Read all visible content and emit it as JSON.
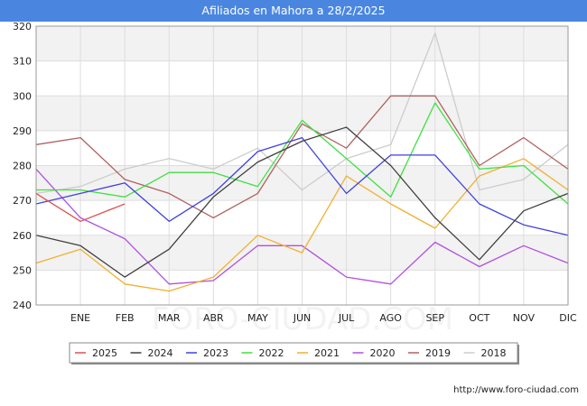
{
  "title": "Afiliados en Mahora a 28/2/2025",
  "credit": "http://www.foro-ciudad.com",
  "watermark": "FORO-CIUDAD.COM",
  "chart_data": {
    "type": "line",
    "title": "Afiliados en Mahora a 28/2/2025",
    "xlabel": "",
    "ylabel": "",
    "categories": [
      "",
      "ENE",
      "FEB",
      "MAR",
      "ABR",
      "MAY",
      "JUN",
      "JUL",
      "AGO",
      "SEP",
      "OCT",
      "NOV",
      "DIC"
    ],
    "ylim": [
      240,
      320
    ],
    "yticks": [
      240,
      250,
      260,
      270,
      280,
      290,
      300,
      310,
      320
    ],
    "grid": true,
    "legend_position": "bottom",
    "series": [
      {
        "name": "2025",
        "color": "#e05050",
        "values": [
          272,
          264,
          269,
          null,
          null,
          null,
          null,
          null,
          null,
          null,
          null,
          null,
          null
        ]
      },
      {
        "name": "2024",
        "color": "#404040",
        "values": [
          260,
          257,
          248,
          256,
          271,
          281,
          287,
          291,
          280,
          265,
          253,
          267,
          272
        ]
      },
      {
        "name": "2023",
        "color": "#4040e0",
        "values": [
          269,
          272,
          275,
          264,
          272,
          284,
          288,
          272,
          283,
          283,
          269,
          263,
          260
        ]
      },
      {
        "name": "2022",
        "color": "#40e040",
        "values": [
          273,
          273,
          271,
          278,
          278,
          274,
          293,
          282,
          271,
          298,
          279,
          280,
          269
        ]
      },
      {
        "name": "2021",
        "color": "#f0b030",
        "values": [
          252,
          256,
          246,
          244,
          248,
          260,
          255,
          277,
          269,
          262,
          277,
          282,
          273
        ]
      },
      {
        "name": "2020",
        "color": "#b050e0",
        "values": [
          279,
          265,
          259,
          246,
          247,
          257,
          257,
          248,
          246,
          258,
          251,
          257,
          252
        ]
      },
      {
        "name": "2019",
        "color": "#b06060",
        "values": [
          286,
          288,
          276,
          272,
          265,
          272,
          292,
          285,
          300,
          300,
          280,
          288,
          279
        ]
      },
      {
        "name": "2018",
        "color": "#cccccc",
        "values": [
          272,
          274,
          279,
          282,
          279,
          285,
          273,
          282,
          286,
          318,
          273,
          276,
          286
        ]
      }
    ]
  }
}
